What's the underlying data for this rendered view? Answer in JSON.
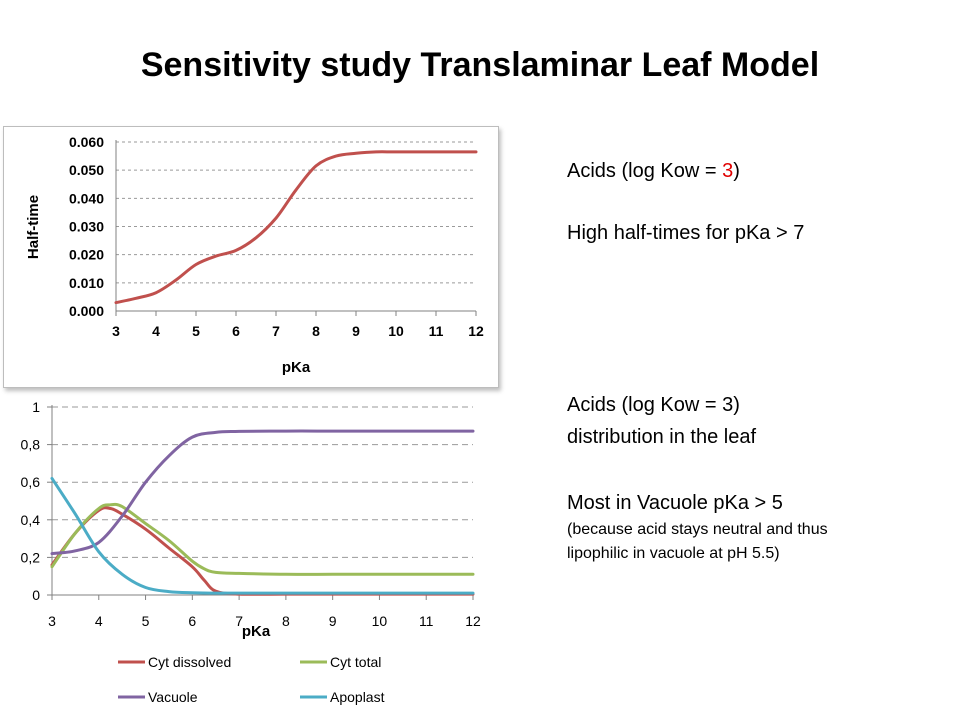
{
  "slide": {
    "title": "Sensitivity study Translaminar Leaf Model",
    "text1": {
      "prefix": "Acids  (log Kow = ",
      "highlight": "3",
      "suffix": ")",
      "highlight_color": "#e00000",
      "line2": "High half-times for pKa > 7"
    },
    "text2": {
      "line1": "Acids (log Kow = 3)",
      "line2": "distribution in the leaf",
      "line3": "Most in Vacuole pKa > 5",
      "line4": "(because acid stays neutral and thus",
      "line5": "lipophilic in vacuole at pH 5.5)"
    }
  },
  "chart_data": [
    {
      "type": "line",
      "title": "",
      "xlabel": "pKa",
      "ylabel": "Half-time",
      "xlim": [
        3,
        12
      ],
      "ylim": [
        0,
        0.06
      ],
      "grid": true,
      "xticks": [
        "3",
        "4",
        "5",
        "6",
        "7",
        "8",
        "9",
        "10",
        "11",
        "12"
      ],
      "yticks": [
        "0.000",
        "0.010",
        "0.020",
        "0.030",
        "0.040",
        "0.050",
        "0.060"
      ],
      "series": [
        {
          "color": "#c0504d",
          "x": [
            3,
            3.5,
            4,
            4.5,
            5,
            5.5,
            6,
            6.5,
            7,
            7.5,
            8,
            8.5,
            9,
            9.5,
            10,
            11,
            12
          ],
          "y": [
            0.003,
            0.0045,
            0.0065,
            0.011,
            0.0165,
            0.0195,
            0.0215,
            0.026,
            0.033,
            0.043,
            0.0515,
            0.055,
            0.056,
            0.0565,
            0.0565,
            0.0565,
            0.0565
          ]
        }
      ]
    },
    {
      "type": "line",
      "title": "",
      "xlabel": "pKa",
      "ylabel": "",
      "xlim": [
        3,
        12
      ],
      "ylim": [
        0,
        1
      ],
      "grid": true,
      "legend": "bottom",
      "xticks": [
        "3",
        "4",
        "5",
        "6",
        "7",
        "8",
        "9",
        "10",
        "11",
        "12"
      ],
      "yticks": [
        "0",
        "0,2",
        "0,4",
        "0,6",
        "0,8",
        "1"
      ],
      "series": [
        {
          "name": "Cyt dissolved",
          "color": "#c0504d",
          "x": [
            3,
            3.5,
            4,
            4.25,
            4.5,
            5,
            5.5,
            6,
            6.25,
            6.5,
            7,
            8,
            9,
            10,
            11,
            12
          ],
          "y": [
            0.16,
            0.33,
            0.45,
            0.46,
            0.43,
            0.35,
            0.25,
            0.15,
            0.08,
            0.02,
            0.005,
            0.005,
            0.005,
            0.005,
            0.005,
            0.005
          ]
        },
        {
          "name": "Cyt total",
          "color": "#9bbb59",
          "x": [
            3,
            3.5,
            4,
            4.25,
            4.5,
            5,
            5.5,
            6,
            6.25,
            6.5,
            7,
            8,
            9,
            10,
            11,
            12
          ],
          "y": [
            0.15,
            0.33,
            0.46,
            0.48,
            0.47,
            0.38,
            0.29,
            0.18,
            0.14,
            0.12,
            0.115,
            0.11,
            0.11,
            0.11,
            0.11,
            0.11
          ]
        },
        {
          "name": "Vacuole",
          "color": "#8064a2",
          "x": [
            3,
            3.5,
            4,
            4.5,
            5,
            5.5,
            6,
            6.5,
            7,
            8,
            9,
            10,
            11,
            12
          ],
          "y": [
            0.22,
            0.235,
            0.28,
            0.42,
            0.6,
            0.74,
            0.84,
            0.865,
            0.87,
            0.872,
            0.872,
            0.872,
            0.872,
            0.872
          ]
        },
        {
          "name": "Apoplast",
          "color": "#4bacc6",
          "x": [
            3,
            3.5,
            4,
            4.5,
            5,
            5.5,
            6,
            6.5,
            7,
            8,
            9,
            10,
            11,
            12
          ],
          "y": [
            0.62,
            0.43,
            0.23,
            0.11,
            0.04,
            0.018,
            0.012,
            0.01,
            0.01,
            0.01,
            0.01,
            0.01,
            0.01,
            0.01
          ]
        }
      ]
    }
  ]
}
